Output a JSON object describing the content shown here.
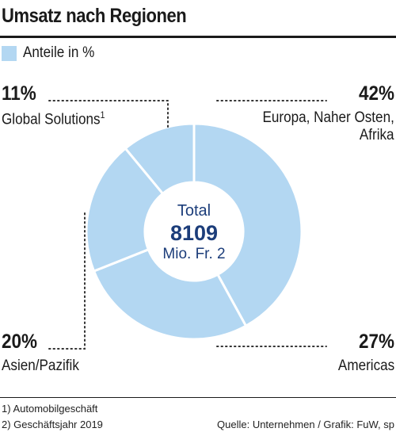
{
  "title": "Umsatz nach Regionen",
  "legend": {
    "label": "Anteile in %",
    "color": "#b3d7f2"
  },
  "chart_data": {
    "type": "pie",
    "variant": "donut",
    "title": "Umsatz nach Regionen",
    "unit": "%",
    "slice_color": "#b3d7f2",
    "separator_color": "#ffffff",
    "slices": [
      {
        "label": "Europa, Naher Osten, Afrika",
        "label_line1": "Europa, Naher Osten,",
        "label_line2": "Afrika",
        "value": 42,
        "display": "42%"
      },
      {
        "label": "Americas",
        "value": 27,
        "display": "27%"
      },
      {
        "label": "Asien/Pazifik",
        "value": 20,
        "display": "20%"
      },
      {
        "label": "Global Solutions",
        "footnote_mark": "1",
        "value": 11,
        "display": "11%"
      }
    ],
    "center": {
      "line1": "Total",
      "value": "8109",
      "line3": "Mio. Fr.",
      "footnote_mark": "2"
    }
  },
  "footnotes": {
    "note1": "1) Automobilgeschäft",
    "note2": "2) Geschäftsjahr 2019",
    "source": "Quelle: Unternehmen / Grafik: FuW, sp"
  }
}
